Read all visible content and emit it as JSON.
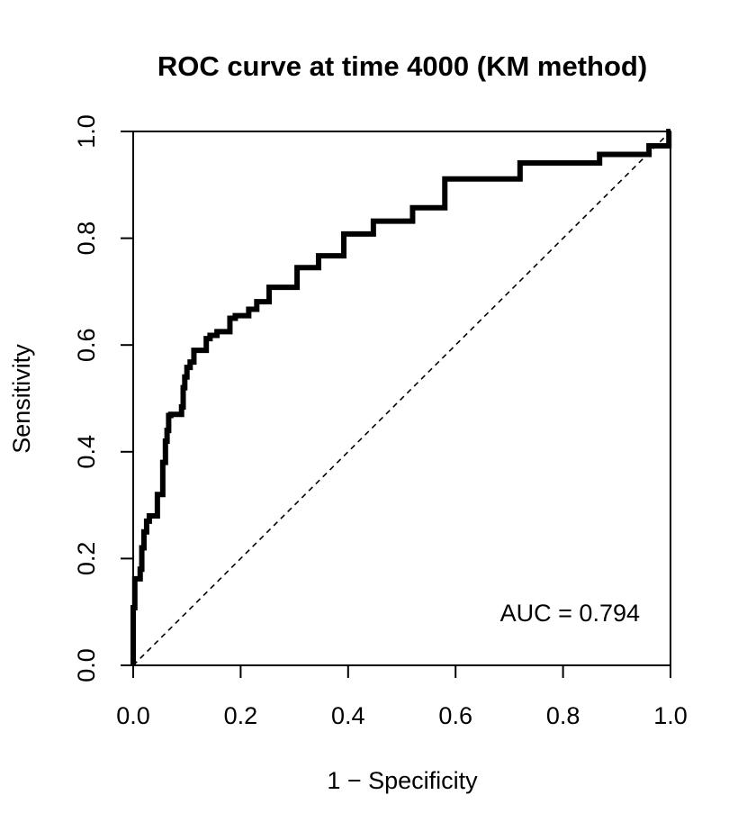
{
  "chart_data": {
    "type": "line",
    "title": "ROC curve at time 4000 (KM method)",
    "xlabel": "1 − Specificity",
    "ylabel": "Sensitivity",
    "xlim": [
      0,
      1
    ],
    "ylim": [
      0,
      1
    ],
    "x_ticks": [
      0.0,
      0.2,
      0.4,
      0.6,
      0.8,
      1.0
    ],
    "y_ticks": [
      0.0,
      0.2,
      0.4,
      0.6,
      0.8,
      1.0
    ],
    "x_tick_labels": [
      "0.0",
      "0.2",
      "0.4",
      "0.6",
      "0.8",
      "1.0"
    ],
    "y_tick_labels": [
      "0.0",
      "0.2",
      "0.4",
      "0.6",
      "0.8",
      "1.0"
    ],
    "grid": false,
    "annotation": "AUC = 0.794",
    "auc": 0.794,
    "series": [
      {
        "style": "solid-thick",
        "color": "#000000",
        "x": [
          0.0,
          0.0,
          0.003,
          0.003,
          0.013,
          0.013,
          0.016,
          0.016,
          0.02,
          0.02,
          0.025,
          0.025,
          0.03,
          0.03,
          0.045,
          0.045,
          0.055,
          0.055,
          0.06,
          0.06,
          0.063,
          0.063,
          0.066,
          0.066,
          0.07,
          0.07,
          0.09,
          0.09,
          0.093,
          0.093,
          0.096,
          0.096,
          0.1,
          0.1,
          0.106,
          0.106,
          0.113,
          0.113,
          0.136,
          0.136,
          0.143,
          0.143,
          0.156,
          0.156,
          0.18,
          0.18,
          0.19,
          0.19,
          0.215,
          0.215,
          0.23,
          0.23,
          0.253,
          0.253,
          0.305,
          0.305,
          0.345,
          0.345,
          0.392,
          0.392,
          0.447,
          0.447,
          0.52,
          0.52,
          0.58,
          0.58,
          0.72,
          0.72,
          0.868,
          0.868,
          0.96,
          0.96,
          0.997,
          0.997,
          1.0
        ],
        "y": [
          0.0,
          0.108,
          0.108,
          0.162,
          0.162,
          0.18,
          0.18,
          0.22,
          0.22,
          0.25,
          0.25,
          0.27,
          0.27,
          0.28,
          0.28,
          0.32,
          0.32,
          0.38,
          0.38,
          0.42,
          0.42,
          0.44,
          0.44,
          0.468,
          0.468,
          0.47,
          0.47,
          0.484,
          0.484,
          0.52,
          0.52,
          0.54,
          0.54,
          0.558,
          0.558,
          0.568,
          0.568,
          0.59,
          0.59,
          0.612,
          0.612,
          0.618,
          0.618,
          0.625,
          0.625,
          0.65,
          0.65,
          0.655,
          0.655,
          0.667,
          0.667,
          0.681,
          0.681,
          0.708,
          0.708,
          0.745,
          0.745,
          0.767,
          0.767,
          0.808,
          0.808,
          0.832,
          0.832,
          0.857,
          0.857,
          0.911,
          0.911,
          0.941,
          0.941,
          0.957,
          0.957,
          0.973,
          0.973,
          1.0,
          1.0
        ]
      },
      {
        "style": "dashed",
        "color": "#000000",
        "x": [
          0,
          1
        ],
        "y": [
          0,
          1
        ]
      }
    ]
  }
}
